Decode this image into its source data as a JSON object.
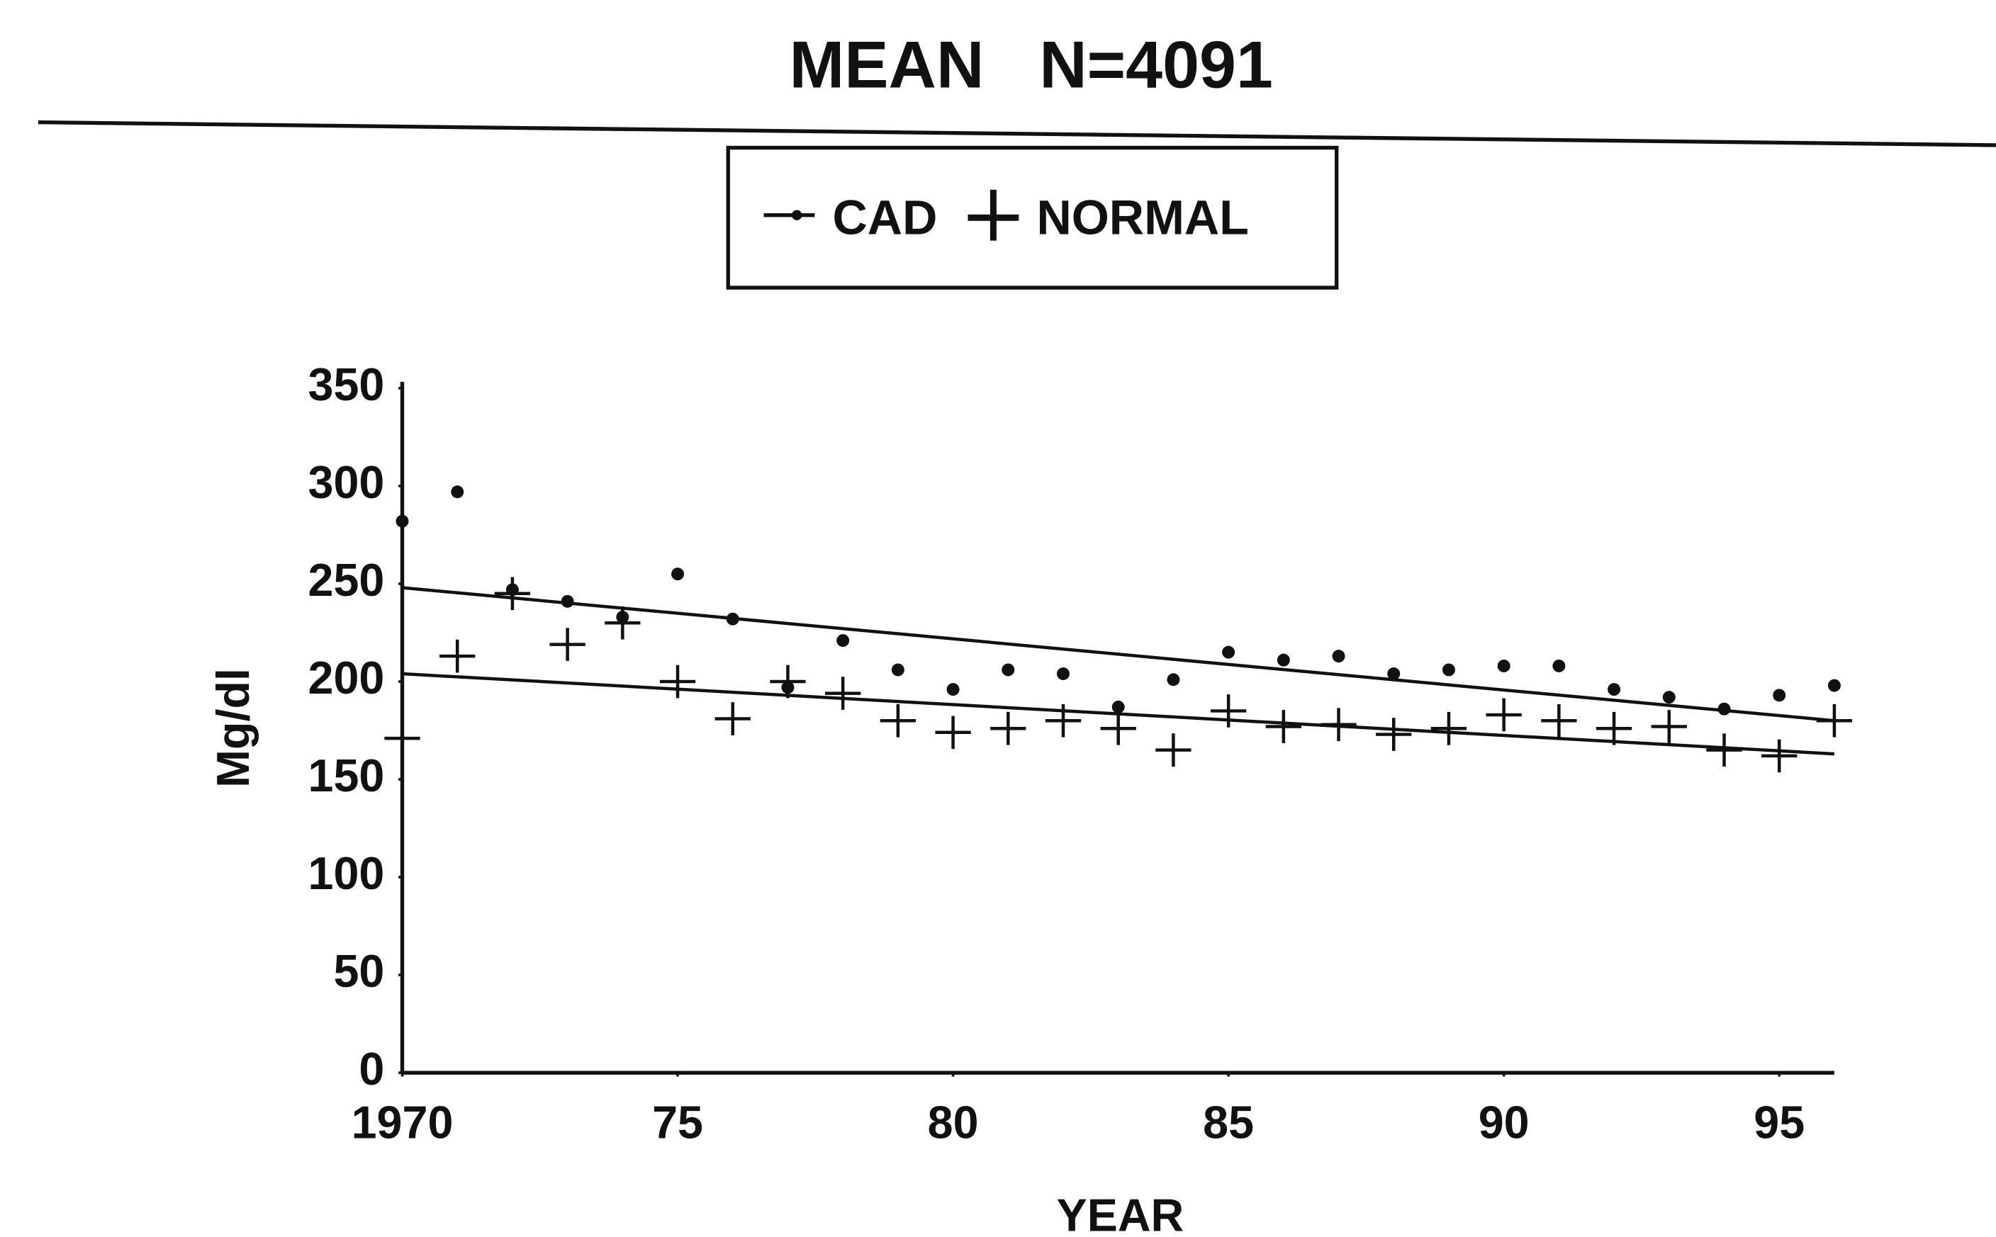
{
  "chart_data": {
    "type": "scatter",
    "title": "MEAN   N=4091",
    "xlabel": "YEAR",
    "ylabel": "Mg/dl",
    "xlim": [
      1970,
      1996
    ],
    "ylim": [
      0,
      350
    ],
    "xticks": [
      1970,
      {
        "value": 1975,
        "label": "75"
      },
      {
        "value": 1980,
        "label": "80"
      },
      {
        "value": 1985,
        "label": "85"
      },
      {
        "value": 1990,
        "label": "90"
      },
      {
        "value": 1995,
        "label": "95"
      }
    ],
    "yticks": [
      0,
      50,
      100,
      150,
      200,
      250,
      300,
      350
    ],
    "x": [
      1970,
      1971,
      1972,
      1973,
      1974,
      1975,
      1976,
      1977,
      1978,
      1979,
      1980,
      1981,
      1982,
      1983,
      1984,
      1985,
      1986,
      1987,
      1988,
      1989,
      1990,
      1991,
      1992,
      1993,
      1994,
      1995,
      1996
    ],
    "series": [
      {
        "name": "CAD",
        "color": "#111111",
        "marker": "dot",
        "values": [
          282,
          297,
          247,
          241,
          233,
          255,
          232,
          197,
          221,
          206,
          196,
          206,
          204,
          187,
          201,
          215,
          211,
          213,
          204,
          206,
          208,
          208,
          196,
          192,
          186,
          193,
          198
        ],
        "trend": {
          "x": [
            1970,
            1996
          ],
          "values": [
            248,
            180
          ]
        }
      },
      {
        "name": "NORMAL",
        "color": "#111111",
        "marker": "plus",
        "values": [
          171,
          213,
          245,
          219,
          230,
          200,
          181,
          200,
          194,
          180,
          174,
          176,
          180,
          176,
          165,
          185,
          177,
          178,
          173,
          176,
          183,
          180,
          176,
          177,
          165,
          162,
          180
        ],
        "trend": {
          "x": [
            1970,
            1996
          ],
          "values": [
            204,
            163
          ]
        }
      }
    ],
    "legend": "top"
  }
}
